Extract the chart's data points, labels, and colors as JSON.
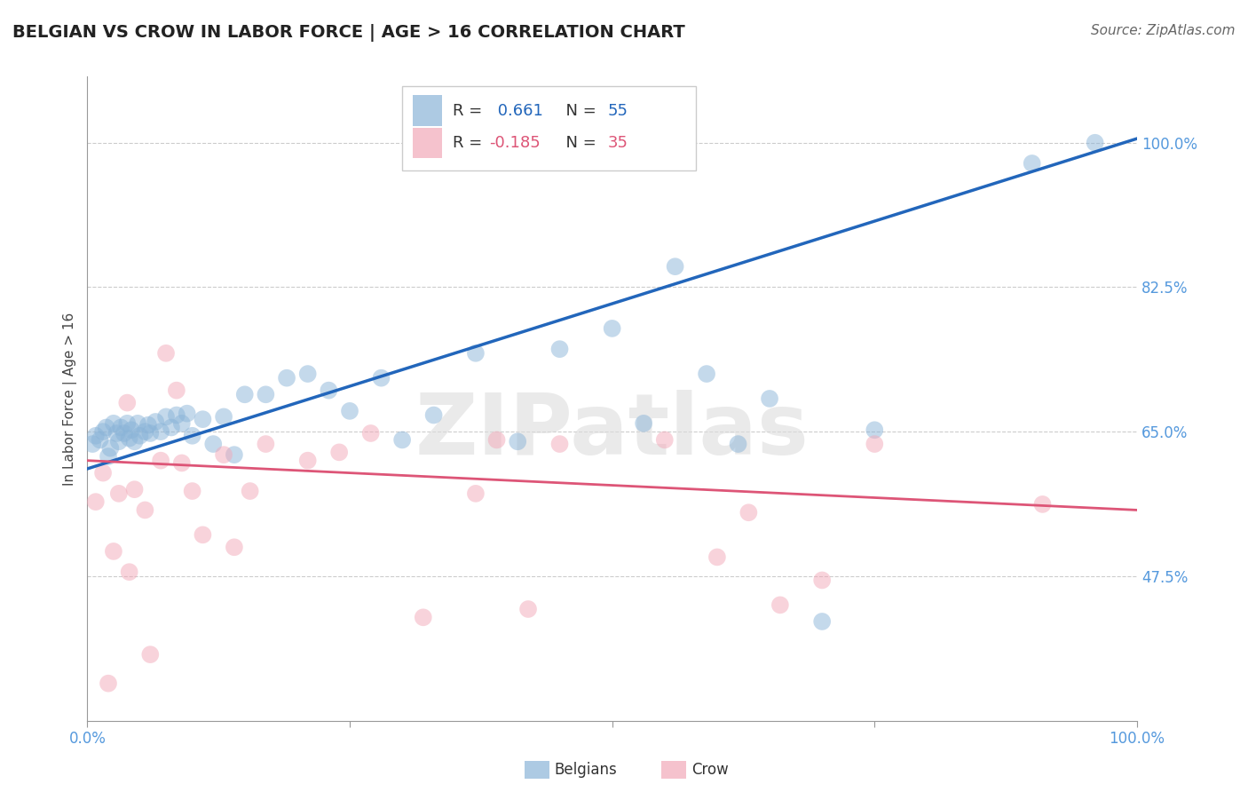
{
  "title": "BELGIAN VS CROW IN LABOR FORCE | AGE > 16 CORRELATION CHART",
  "source": "Source: ZipAtlas.com",
  "ylabel": "In Labor Force | Age > 16",
  "xlim": [
    0.0,
    1.0
  ],
  "ylim": [
    0.3,
    1.08
  ],
  "yticks": [
    0.475,
    0.65,
    0.825,
    1.0
  ],
  "ytick_labels": [
    "47.5%",
    "65.0%",
    "82.5%",
    "100.0%"
  ],
  "xtick_positions": [
    0.0,
    0.25,
    0.5,
    0.75,
    1.0
  ],
  "xtick_labels": [
    "0.0%",
    "",
    "",
    "",
    "100.0%"
  ],
  "blue_R": 0.661,
  "blue_N": 55,
  "pink_R": -0.185,
  "pink_N": 35,
  "blue_color": "#8ab4d8",
  "pink_color": "#f2a8b8",
  "blue_line_color": "#2266bb",
  "pink_line_color": "#dd5577",
  "background_color": "#ffffff",
  "grid_color": "#cccccc",
  "axis_color": "#999999",
  "tick_label_color": "#5599dd",
  "title_color": "#222222",
  "source_color": "#666666",
  "ylabel_color": "#444444",
  "watermark_text": "ZIPatlas",
  "watermark_color": "#dddddd",
  "legend_r_blue_color": "#2266bb",
  "legend_n_blue_color": "#2266bb",
  "legend_r_pink_color": "#dd5577",
  "legend_n_pink_color": "#dd5577",
  "blue_scatter_x": [
    0.005,
    0.008,
    0.012,
    0.015,
    0.018,
    0.02,
    0.022,
    0.025,
    0.028,
    0.03,
    0.032,
    0.035,
    0.038,
    0.04,
    0.042,
    0.045,
    0.048,
    0.05,
    0.055,
    0.058,
    0.06,
    0.065,
    0.07,
    0.075,
    0.08,
    0.085,
    0.09,
    0.095,
    0.1,
    0.11,
    0.12,
    0.13,
    0.14,
    0.15,
    0.17,
    0.19,
    0.21,
    0.23,
    0.25,
    0.28,
    0.3,
    0.33,
    0.37,
    0.41,
    0.45,
    0.5,
    0.53,
    0.56,
    0.59,
    0.62,
    0.65,
    0.7,
    0.75,
    0.9,
    0.96
  ],
  "blue_scatter_y": [
    0.635,
    0.645,
    0.64,
    0.65,
    0.655,
    0.62,
    0.63,
    0.66,
    0.648,
    0.638,
    0.655,
    0.648,
    0.66,
    0.642,
    0.652,
    0.638,
    0.66,
    0.645,
    0.65,
    0.658,
    0.648,
    0.662,
    0.65,
    0.668,
    0.655,
    0.67,
    0.66,
    0.672,
    0.645,
    0.665,
    0.635,
    0.668,
    0.622,
    0.695,
    0.695,
    0.715,
    0.72,
    0.7,
    0.675,
    0.715,
    0.64,
    0.67,
    0.745,
    0.638,
    0.75,
    0.775,
    0.66,
    0.85,
    0.72,
    0.635,
    0.69,
    0.42,
    0.652,
    0.975,
    1.0
  ],
  "pink_scatter_x": [
    0.008,
    0.015,
    0.02,
    0.025,
    0.03,
    0.038,
    0.04,
    0.045,
    0.055,
    0.06,
    0.07,
    0.075,
    0.085,
    0.09,
    0.1,
    0.11,
    0.13,
    0.14,
    0.155,
    0.17,
    0.21,
    0.24,
    0.27,
    0.32,
    0.37,
    0.39,
    0.42,
    0.45,
    0.55,
    0.6,
    0.63,
    0.66,
    0.7,
    0.75,
    0.91
  ],
  "pink_scatter_y": [
    0.565,
    0.6,
    0.345,
    0.505,
    0.575,
    0.685,
    0.48,
    0.58,
    0.555,
    0.38,
    0.615,
    0.745,
    0.7,
    0.612,
    0.578,
    0.525,
    0.622,
    0.51,
    0.578,
    0.635,
    0.615,
    0.625,
    0.648,
    0.425,
    0.575,
    0.64,
    0.435,
    0.635,
    0.64,
    0.498,
    0.552,
    0.44,
    0.47,
    0.635,
    0.562
  ],
  "blue_line_x0": 0.0,
  "blue_line_x1": 1.0,
  "blue_line_y0": 0.605,
  "blue_line_y1": 1.005,
  "pink_line_x0": 0.0,
  "pink_line_x1": 1.0,
  "pink_line_y0": 0.615,
  "pink_line_y1": 0.555
}
